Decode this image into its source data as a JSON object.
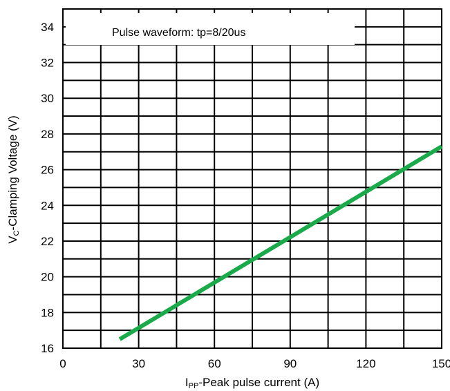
{
  "chart_data": {
    "type": "line",
    "title": "",
    "annotation": "Pulse waveform: tp=8/20us",
    "xlabel": {
      "main": "I",
      "sub": "PP",
      "rest": "-Peak pulse current (A)"
    },
    "ylabel": {
      "main": "V",
      "sub": "C",
      "rest": "-Clamping Voltage (V)"
    },
    "xlim": [
      0,
      150
    ],
    "ylim": [
      16,
      35
    ],
    "x_ticks": [
      0,
      30,
      60,
      90,
      120,
      150
    ],
    "y_ticks": [
      16,
      18,
      20,
      22,
      24,
      26,
      28,
      30,
      32,
      34
    ],
    "grid": true,
    "series": [
      {
        "color": "#1aaa4a",
        "x": [
          22.5,
          150
        ],
        "y": [
          16.5,
          27.3
        ]
      }
    ]
  }
}
